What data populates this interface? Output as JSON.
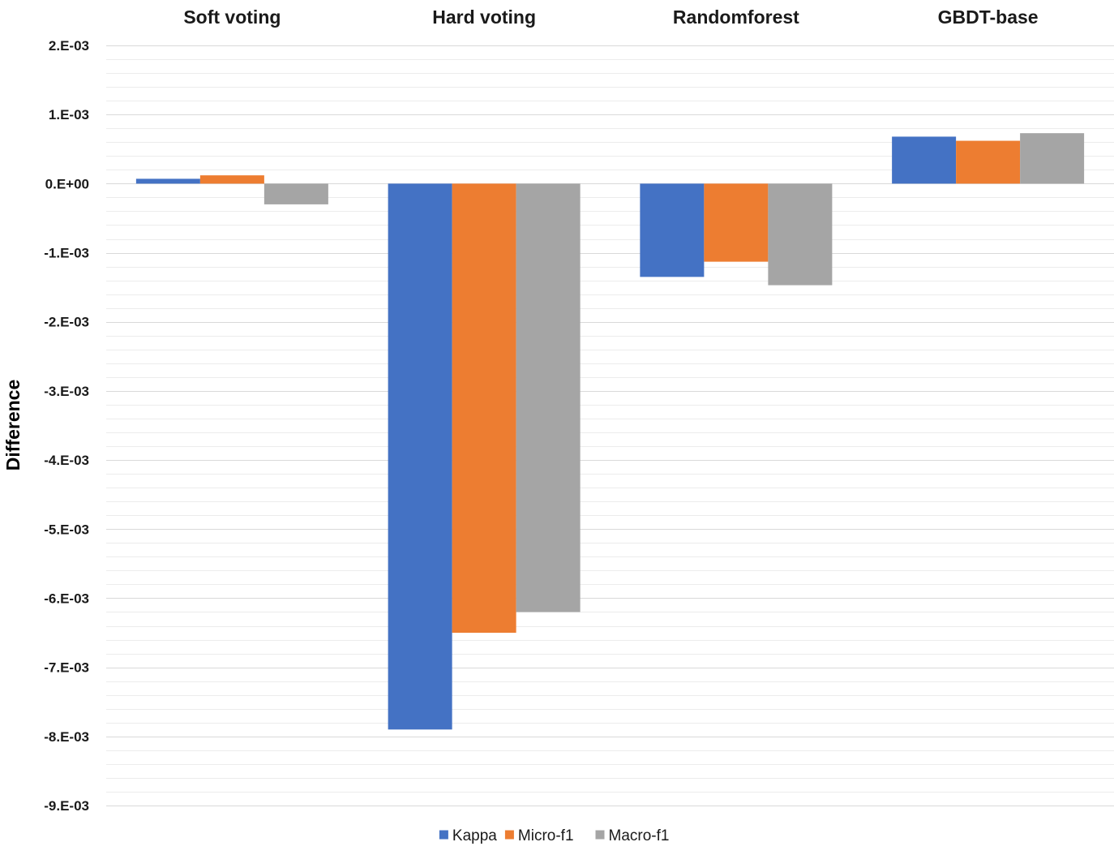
{
  "chart_data": {
    "type": "bar",
    "title": "",
    "xlabel": "",
    "ylabel": "Difference",
    "ylim": [
      -0.009,
      0.002
    ],
    "ytick_values": [
      0.002,
      0.001,
      0.0,
      -0.001,
      -0.002,
      -0.003,
      -0.004,
      -0.005,
      -0.006,
      -0.007,
      -0.008,
      -0.009
    ],
    "ytick_labels": [
      "2.E-03",
      "1.E-03",
      "0.E+00",
      "-1.E-03",
      "-2.E-03",
      "-3.E-03",
      "-4.E-03",
      "-5.E-03",
      "-6.E-03",
      "-7.E-03",
      "-8.E-03",
      "-9.E-03"
    ],
    "minor_gridlines_per_major": 5,
    "category_label_position": "top",
    "legend_position": "bottom-center",
    "categories": [
      "Soft voting",
      "Hard voting",
      "Randomforest",
      "GBDT-base"
    ],
    "series": [
      {
        "name": "Kappa",
        "color": "#4472c4",
        "values": [
          7e-05,
          -0.0079,
          -0.00135,
          0.00068
        ]
      },
      {
        "name": "Micro-f1",
        "color": "#ed7d31",
        "values": [
          0.00012,
          -0.0065,
          -0.00113,
          0.00062
        ]
      },
      {
        "name": "Macro-f1",
        "color": "#a5a5a5",
        "values": [
          -0.0003,
          -0.0062,
          -0.00147,
          0.00073
        ]
      }
    ]
  }
}
